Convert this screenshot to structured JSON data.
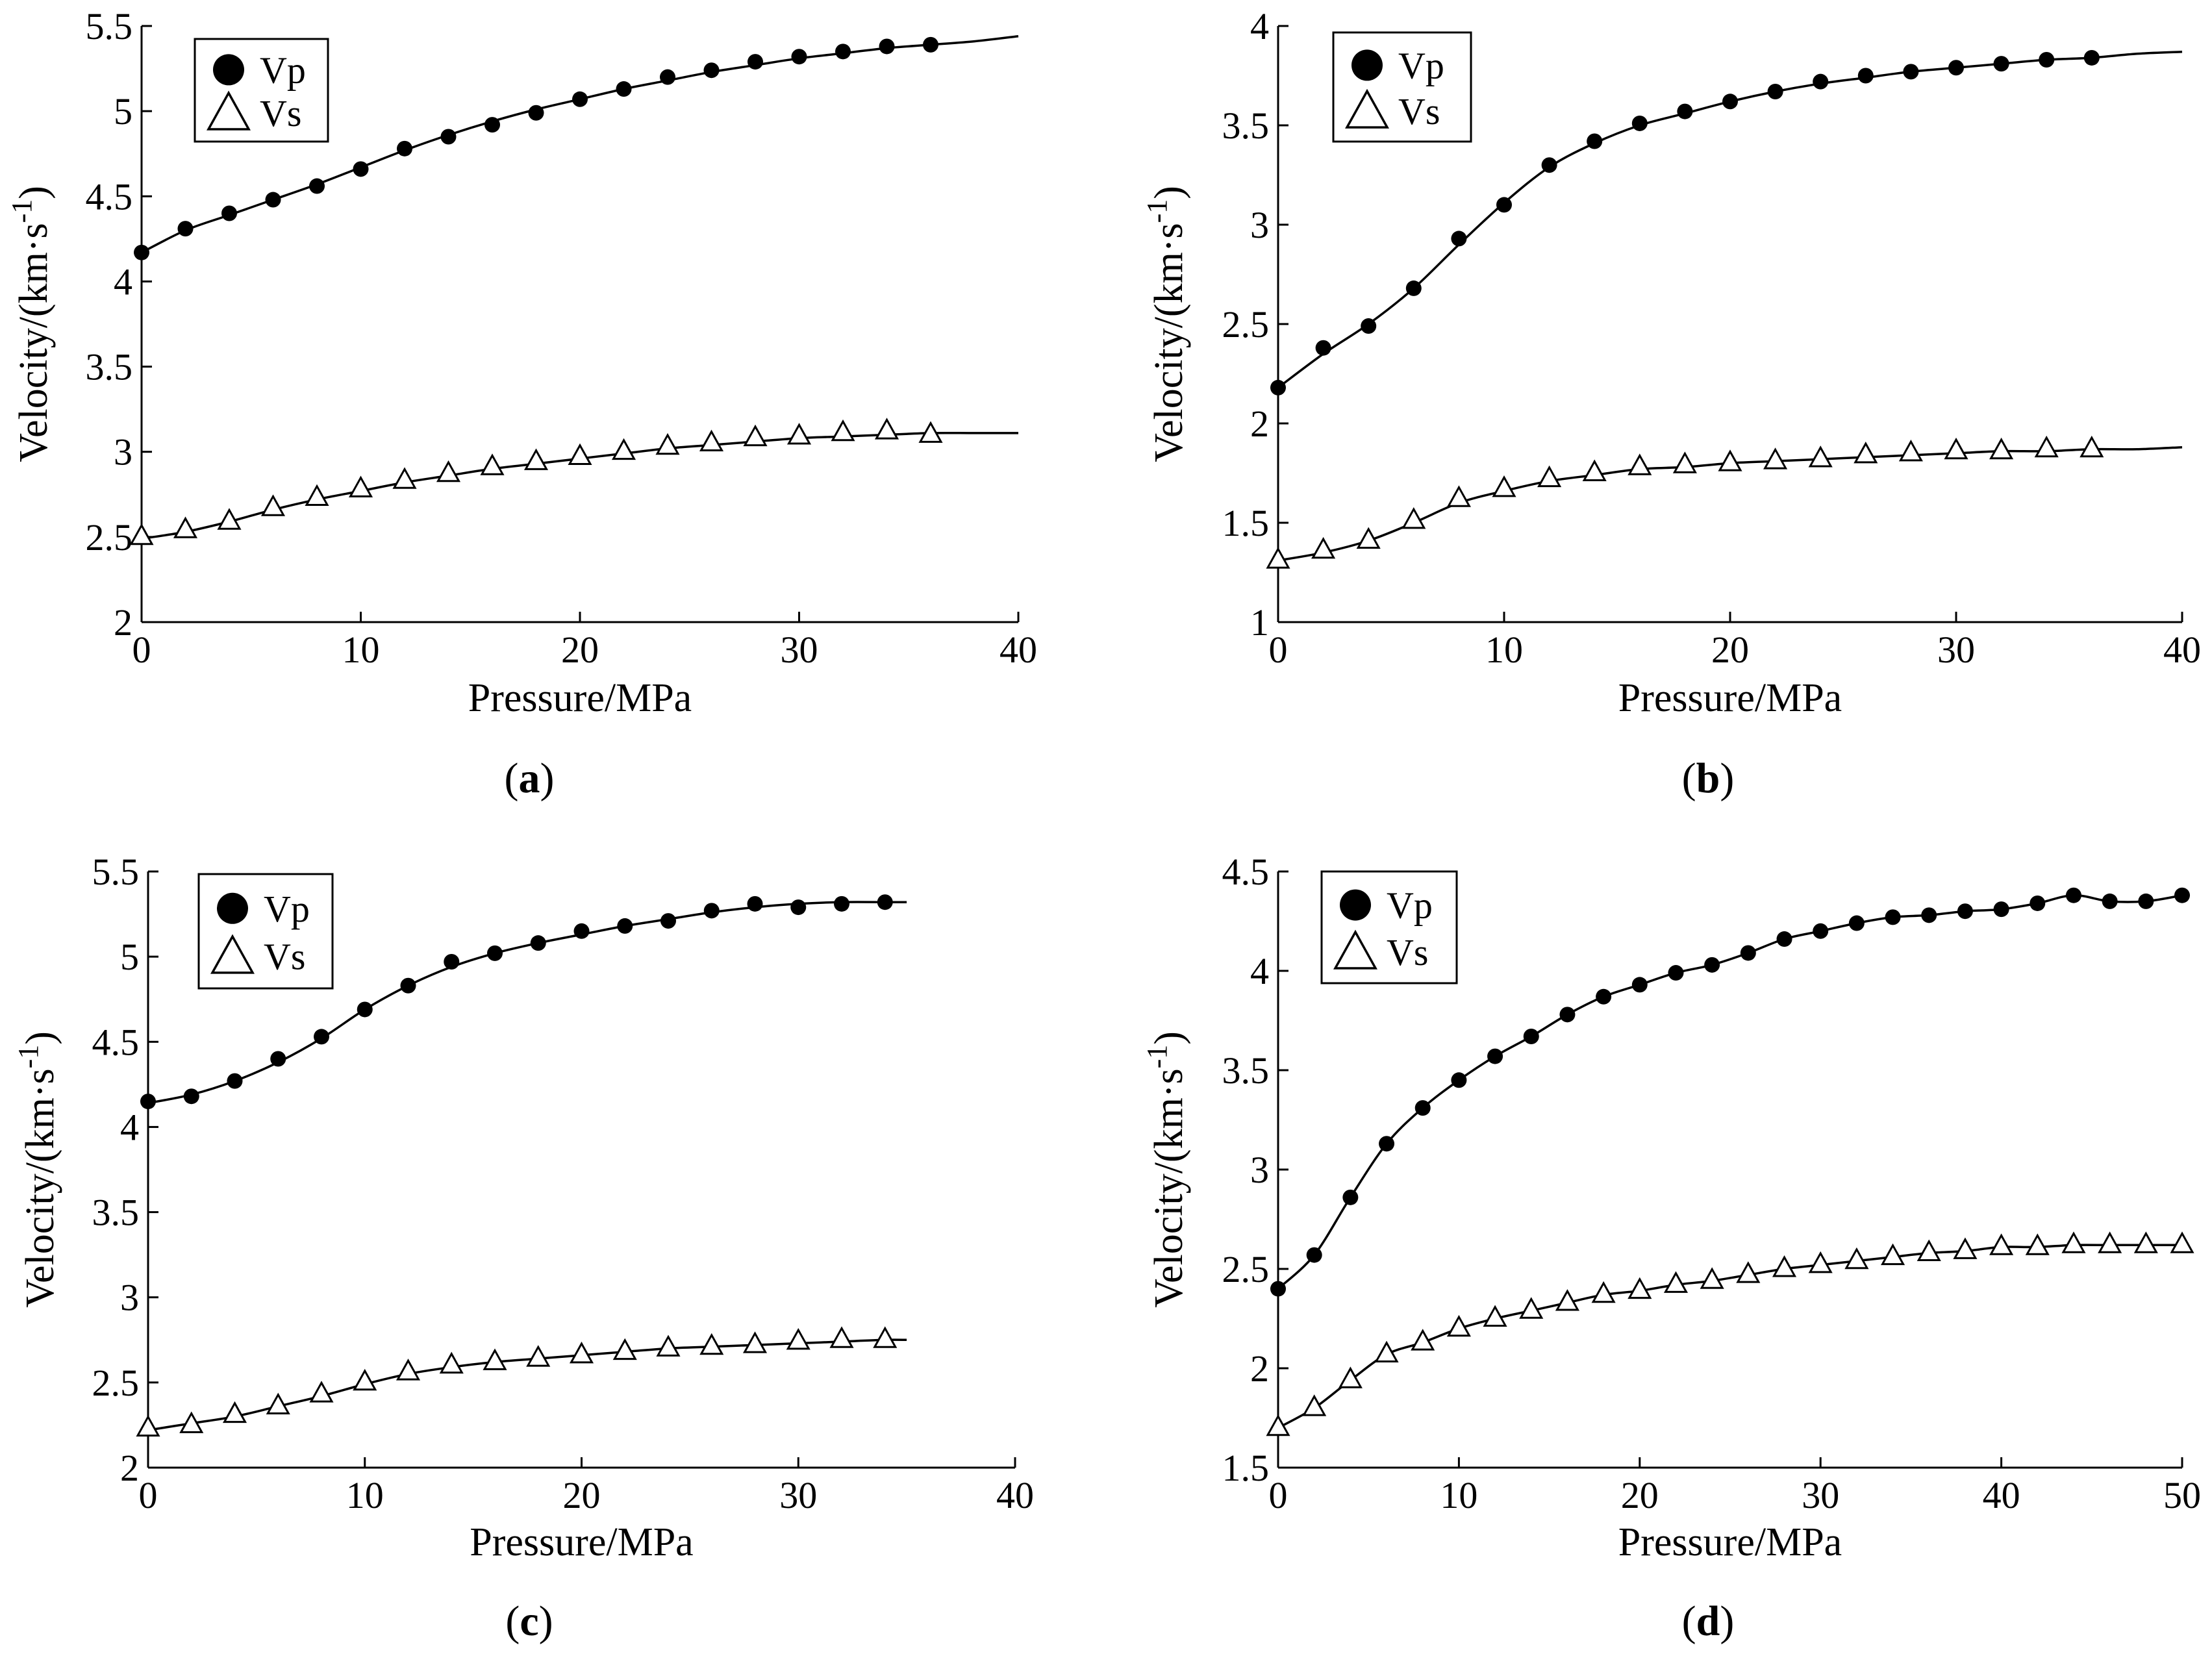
{
  "chart_data": [
    {
      "type": "line",
      "panel": "a",
      "caption": "a",
      "xlabel": "Pressure/MPa",
      "ylabel": "Velocity/(km·s",
      "ylabel_sup": "-1",
      "ylabel_close": ")",
      "xlim": [
        0,
        40
      ],
      "ylim": [
        2,
        5.5
      ],
      "xticks": [
        0,
        10,
        20,
        30,
        40
      ],
      "yticks": [
        2,
        2.5,
        3,
        3.5,
        4,
        4.5,
        5,
        5.5
      ],
      "legend_position": "top-left",
      "grid": false,
      "series": [
        {
          "name": "Vp",
          "marker": "circle",
          "x": [
            0,
            2,
            4,
            6,
            8,
            10,
            12,
            14,
            16,
            18,
            20,
            22,
            24,
            26,
            28,
            30,
            32,
            34,
            36
          ],
          "y": [
            4.17,
            4.31,
            4.4,
            4.48,
            4.56,
            4.66,
            4.78,
            4.85,
            4.92,
            4.99,
            5.07,
            5.13,
            5.2,
            5.24,
            5.29,
            5.32,
            5.35,
            5.38,
            5.39
          ],
          "fit_x": [
            0,
            2,
            4,
            6,
            8,
            10,
            12,
            14,
            16,
            18,
            20,
            22,
            24,
            26,
            28,
            30,
            32,
            34,
            36,
            38,
            40
          ],
          "fit_y": [
            4.17,
            4.3,
            4.39,
            4.48,
            4.57,
            4.67,
            4.77,
            4.86,
            4.94,
            5.01,
            5.07,
            5.13,
            5.18,
            5.23,
            5.27,
            5.31,
            5.34,
            5.37,
            5.39,
            5.41,
            5.44
          ]
        },
        {
          "name": "Vs",
          "marker": "triangle",
          "x": [
            0,
            2,
            4,
            6,
            8,
            10,
            12,
            14,
            16,
            18,
            20,
            22,
            24,
            26,
            28,
            30,
            32,
            34,
            36
          ],
          "y": [
            2.5,
            2.54,
            2.59,
            2.67,
            2.73,
            2.78,
            2.83,
            2.87,
            2.91,
            2.94,
            2.97,
            3.0,
            3.03,
            3.05,
            3.08,
            3.09,
            3.11,
            3.12,
            3.1
          ],
          "fit_x": [
            0,
            2,
            4,
            6,
            8,
            10,
            12,
            14,
            16,
            18,
            20,
            22,
            24,
            26,
            28,
            30,
            32,
            34,
            36,
            38,
            40
          ],
          "fit_y": [
            2.49,
            2.53,
            2.59,
            2.66,
            2.72,
            2.77,
            2.82,
            2.86,
            2.9,
            2.93,
            2.96,
            2.99,
            3.02,
            3.04,
            3.06,
            3.08,
            3.09,
            3.1,
            3.11,
            3.11,
            3.11
          ]
        }
      ]
    },
    {
      "type": "line",
      "panel": "b",
      "caption": "b",
      "xlabel": "Pressure/MPa",
      "ylabel": "Velocity/(km·s",
      "ylabel_sup": "-1",
      "ylabel_close": ")",
      "xlim": [
        0,
        40
      ],
      "ylim": [
        1,
        4
      ],
      "xticks": [
        0,
        10,
        20,
        30,
        40
      ],
      "yticks": [
        1,
        1.5,
        2,
        2.5,
        3,
        3.5,
        4
      ],
      "legend_position": "top-left",
      "grid": false,
      "series": [
        {
          "name": "Vp",
          "marker": "circle",
          "x": [
            0,
            2,
            4,
            6,
            8,
            10,
            12,
            14,
            16,
            18,
            20,
            22,
            24,
            26,
            28,
            30,
            32,
            34,
            36
          ],
          "y": [
            2.18,
            2.38,
            2.49,
            2.68,
            2.93,
            3.1,
            3.3,
            3.42,
            3.51,
            3.57,
            3.62,
            3.67,
            3.72,
            3.75,
            3.77,
            3.79,
            3.81,
            3.83,
            3.84
          ],
          "fit_x": [
            0,
            2,
            4,
            6,
            8,
            10,
            12,
            14,
            16,
            18,
            20,
            22,
            24,
            26,
            28,
            30,
            32,
            34,
            36,
            38,
            40
          ],
          "fit_y": [
            2.18,
            2.35,
            2.5,
            2.68,
            2.9,
            3.11,
            3.29,
            3.41,
            3.5,
            3.56,
            3.62,
            3.67,
            3.71,
            3.74,
            3.77,
            3.79,
            3.81,
            3.83,
            3.84,
            3.86,
            3.87
          ]
        },
        {
          "name": "Vs",
          "marker": "triangle",
          "x": [
            0,
            2,
            4,
            6,
            8,
            10,
            12,
            14,
            16,
            18,
            20,
            22,
            24,
            26,
            28,
            30,
            32,
            34,
            36
          ],
          "y": [
            1.31,
            1.36,
            1.41,
            1.51,
            1.62,
            1.67,
            1.72,
            1.75,
            1.78,
            1.79,
            1.8,
            1.81,
            1.82,
            1.84,
            1.85,
            1.86,
            1.86,
            1.87,
            1.87
          ],
          "fit_x": [
            0,
            2,
            4,
            6,
            8,
            10,
            12,
            14,
            16,
            18,
            20,
            22,
            24,
            26,
            28,
            30,
            32,
            34,
            36,
            38,
            40
          ],
          "fit_y": [
            1.31,
            1.35,
            1.41,
            1.5,
            1.6,
            1.66,
            1.71,
            1.74,
            1.77,
            1.78,
            1.8,
            1.81,
            1.82,
            1.83,
            1.84,
            1.85,
            1.86,
            1.86,
            1.87,
            1.87,
            1.88
          ]
        }
      ]
    },
    {
      "type": "line",
      "panel": "c",
      "caption": "c",
      "xlabel": "Pressure/MPa",
      "ylabel": "Velocity/(km·s",
      "ylabel_sup": "-1",
      "ylabel_close": ")",
      "xlim": [
        0,
        40
      ],
      "ylim": [
        2,
        5.5
      ],
      "xticks": [
        0,
        10,
        20,
        30,
        40
      ],
      "yticks": [
        2,
        2.5,
        3,
        3.5,
        4,
        4.5,
        5,
        5.5
      ],
      "legend_position": "top-left",
      "grid": false,
      "series": [
        {
          "name": "Vp",
          "marker": "circle",
          "x": [
            0,
            2,
            4,
            6,
            8,
            10,
            12,
            14,
            16,
            18,
            20,
            22,
            24,
            26,
            28,
            30,
            32,
            34
          ],
          "y": [
            4.15,
            4.18,
            4.27,
            4.4,
            4.53,
            4.69,
            4.83,
            4.97,
            5.02,
            5.08,
            5.15,
            5.18,
            5.21,
            5.27,
            5.31,
            5.29,
            5.31,
            5.32
          ],
          "fit_x": [
            0,
            2,
            4,
            6,
            8,
            10,
            12,
            14,
            16,
            18,
            20,
            22,
            24,
            26,
            28,
            30,
            32,
            34,
            35
          ],
          "fit_y": [
            4.14,
            4.19,
            4.27,
            4.38,
            4.52,
            4.69,
            4.83,
            4.94,
            5.02,
            5.08,
            5.13,
            5.18,
            5.22,
            5.26,
            5.29,
            5.31,
            5.32,
            5.32,
            5.32
          ]
        },
        {
          "name": "Vs",
          "marker": "triangle",
          "x": [
            0,
            2,
            4,
            6,
            8,
            10,
            12,
            14,
            16,
            18,
            20,
            22,
            24,
            26,
            28,
            30,
            32,
            34
          ],
          "y": [
            2.23,
            2.25,
            2.31,
            2.36,
            2.43,
            2.5,
            2.56,
            2.6,
            2.62,
            2.64,
            2.66,
            2.68,
            2.7,
            2.71,
            2.72,
            2.74,
            2.75,
            2.75
          ],
          "fit_x": [
            0,
            2,
            4,
            6,
            8,
            10,
            12,
            14,
            16,
            18,
            20,
            22,
            24,
            26,
            28,
            30,
            32,
            34,
            35
          ],
          "fit_y": [
            2.22,
            2.26,
            2.3,
            2.36,
            2.42,
            2.49,
            2.55,
            2.59,
            2.62,
            2.64,
            2.66,
            2.68,
            2.7,
            2.71,
            2.72,
            2.73,
            2.74,
            2.75,
            2.75
          ]
        }
      ]
    },
    {
      "type": "line",
      "panel": "d",
      "caption": "d",
      "xlabel": "Pressure/MPa",
      "ylabel": "Velocity/(km·s",
      "ylabel_sup": "-1",
      "ylabel_close": ")",
      "xlim": [
        0,
        50
      ],
      "ylim": [
        1.5,
        4.5
      ],
      "xticks": [
        0,
        10,
        20,
        30,
        40,
        50
      ],
      "yticks": [
        1.5,
        2,
        2.5,
        3,
        3.5,
        4,
        4.5
      ],
      "legend_position": "top-left",
      "grid": false,
      "series": [
        {
          "name": "Vp",
          "marker": "circle",
          "x": [
            0,
            2,
            4,
            6,
            8,
            10,
            12,
            14,
            16,
            18,
            20,
            22,
            24,
            26,
            28,
            30,
            32,
            34,
            36,
            38,
            40,
            42,
            44,
            46,
            48,
            50
          ],
          "y": [
            2.4,
            2.57,
            2.86,
            3.13,
            3.31,
            3.45,
            3.57,
            3.67,
            3.78,
            3.87,
            3.93,
            3.99,
            4.03,
            4.09,
            4.16,
            4.2,
            4.24,
            4.27,
            4.28,
            4.3,
            4.31,
            4.34,
            4.38,
            4.35,
            4.35,
            4.38
          ]
        },
        {
          "name": "Vs",
          "marker": "triangle",
          "x": [
            0,
            2,
            4,
            6,
            8,
            10,
            12,
            14,
            16,
            18,
            20,
            22,
            24,
            26,
            28,
            30,
            32,
            34,
            36,
            38,
            40,
            42,
            44,
            46,
            48,
            50
          ],
          "y": [
            1.7,
            1.8,
            1.94,
            2.07,
            2.13,
            2.2,
            2.25,
            2.29,
            2.33,
            2.37,
            2.39,
            2.42,
            2.44,
            2.47,
            2.5,
            2.52,
            2.54,
            2.56,
            2.58,
            2.59,
            2.61,
            2.61,
            2.62,
            2.62,
            2.62,
            2.62
          ]
        }
      ]
    }
  ]
}
